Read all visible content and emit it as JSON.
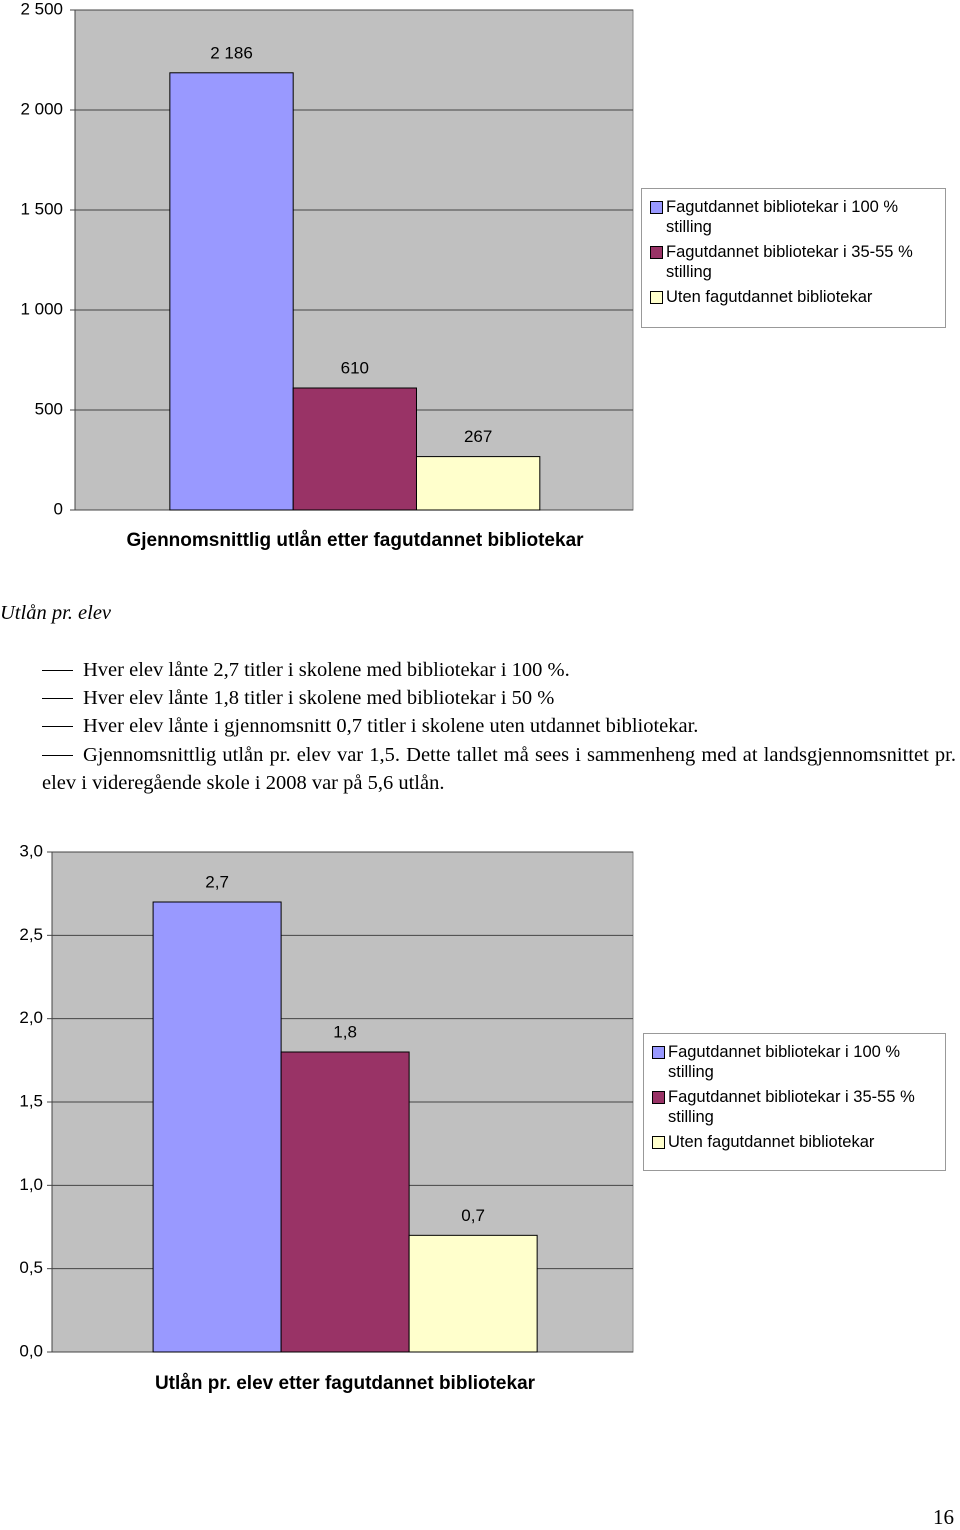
{
  "chart_data": [
    {
      "type": "bar",
      "title": "Gjennomsnittlig utlån etter fagutdannet bibliotekar",
      "categories": [
        null
      ],
      "series": [
        {
          "name": "Fagutdannet bibliotekar i 100 % stilling",
          "color": "#9999ff",
          "values": [
            2186
          ],
          "value_labels": [
            "2 186"
          ]
        },
        {
          "name": "Fagutdannet bibliotekar i 35-55 % stilling",
          "color": "#993366",
          "values": [
            610
          ]
        },
        {
          "name": "Uten fagutdannet bibliotekar",
          "color": "#ffffcc",
          "values": [
            267
          ]
        }
      ],
      "ylim": [
        0,
        2500
      ],
      "yticks": [
        0,
        500,
        {
          "value": 1000,
          "label": "1 000"
        },
        {
          "value": 1500,
          "label": "1 500"
        },
        {
          "value": 2000,
          "label": "2 000"
        },
        {
          "value": 2500,
          "label": "2 500"
        }
      ],
      "grid": true,
      "legend": "right",
      "background": "#c0c0c0"
    },
    {
      "type": "bar",
      "title": "Utlån pr. elev etter fagutdannet bibliotekar",
      "categories": [
        null
      ],
      "series": [
        {
          "name": "Fagutdannet bibliotekar i 100 % stilling",
          "color": "#9999ff",
          "values": [
            2.7
          ],
          "value_labels": [
            "2,7"
          ]
        },
        {
          "name": "Fagutdannet bibliotekar i 35-55 % stilling",
          "color": "#993366",
          "values": [
            1.8
          ],
          "value_labels": [
            "1,8"
          ]
        },
        {
          "name": "Uten fagutdannet bibliotekar",
          "color": "#ffffcc",
          "values": [
            0.7
          ],
          "value_labels": [
            "0,7"
          ]
        }
      ],
      "ylim": [
        0,
        3
      ],
      "yticks": [
        {
          "value": 0,
          "label": "0,0"
        },
        {
          "value": 0.5,
          "label": "0,5"
        },
        {
          "value": 1,
          "label": "1,0"
        },
        {
          "value": 1.5,
          "label": "1,5"
        },
        {
          "value": 2,
          "label": "2,0"
        },
        {
          "value": 2.5,
          "label": "2,5"
        },
        {
          "value": 3,
          "label": "3,0"
        }
      ],
      "grid": true,
      "legend": "right",
      "background": "#c0c0c0"
    }
  ],
  "text": {
    "heading": "Utlån pr. elev",
    "bullets": [
      "Hver elev lånte 2,7 titler i skolene med bibliotekar i 100 %.",
      "Hver elev lånte 1,8 titler i skolene med bibliotekar i 50 %",
      "Hver elev lånte i gjennomsnitt 0,7 titler i skolene uten utdannet bibliotekar.",
      "Gjennomsnittlig utlån pr. elev var 1,5. Dette tallet må sees i sammenheng med at landsgjennomsnittet pr. elev i videregående skole i 2008 var på 5,6 utlån."
    ]
  },
  "page_number": "16"
}
